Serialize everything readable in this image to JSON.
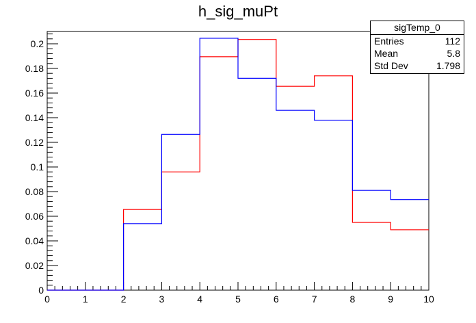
{
  "title": "h_sig_muPt",
  "stats": {
    "name": "sigTemp_0",
    "rows": [
      {
        "label": "Entries",
        "value": "112"
      },
      {
        "label": "Mean",
        "value": "5.8"
      },
      {
        "label": "Std Dev",
        "value": "1.798"
      }
    ]
  },
  "colors": {
    "red_series": "#ff0000",
    "blue_series": "#0000ff",
    "axis": "#000000"
  },
  "chart_data": {
    "type": "histogram",
    "title": "h_sig_muPt",
    "xlabel": "",
    "ylabel": "",
    "xlim": [
      0,
      10
    ],
    "ylim": [
      0,
      0.21
    ],
    "bin_edges": [
      0,
      1,
      2,
      3,
      4,
      5,
      6,
      7,
      8,
      9,
      10
    ],
    "x_ticks": [
      "0",
      "1",
      "2",
      "3",
      "4",
      "5",
      "6",
      "7",
      "8",
      "9",
      "10"
    ],
    "y_ticks": [
      {
        "value": 0,
        "label": "0"
      },
      {
        "value": 0.02,
        "label": "0.02"
      },
      {
        "value": 0.04,
        "label": "0.04"
      },
      {
        "value": 0.06,
        "label": "0.06"
      },
      {
        "value": 0.08,
        "label": "0.08"
      },
      {
        "value": 0.1,
        "label": "0.1"
      },
      {
        "value": 0.12,
        "label": "0.12"
      },
      {
        "value": 0.14,
        "label": "0.14"
      },
      {
        "value": 0.16,
        "label": "0.16"
      },
      {
        "value": 0.18,
        "label": "0.18"
      },
      {
        "value": 0.2,
        "label": "0.2"
      }
    ],
    "series": [
      {
        "color": "#ff0000",
        "values": [
          0,
          0,
          0.0655,
          0.096,
          0.1895,
          0.2035,
          0.1655,
          0.174,
          0.055,
          0.049
        ]
      },
      {
        "color": "#0000ff",
        "values": [
          0,
          0,
          0.054,
          0.1265,
          0.2045,
          0.172,
          0.146,
          0.138,
          0.081,
          0.0735
        ]
      }
    ],
    "grid": false,
    "legend": "none"
  }
}
